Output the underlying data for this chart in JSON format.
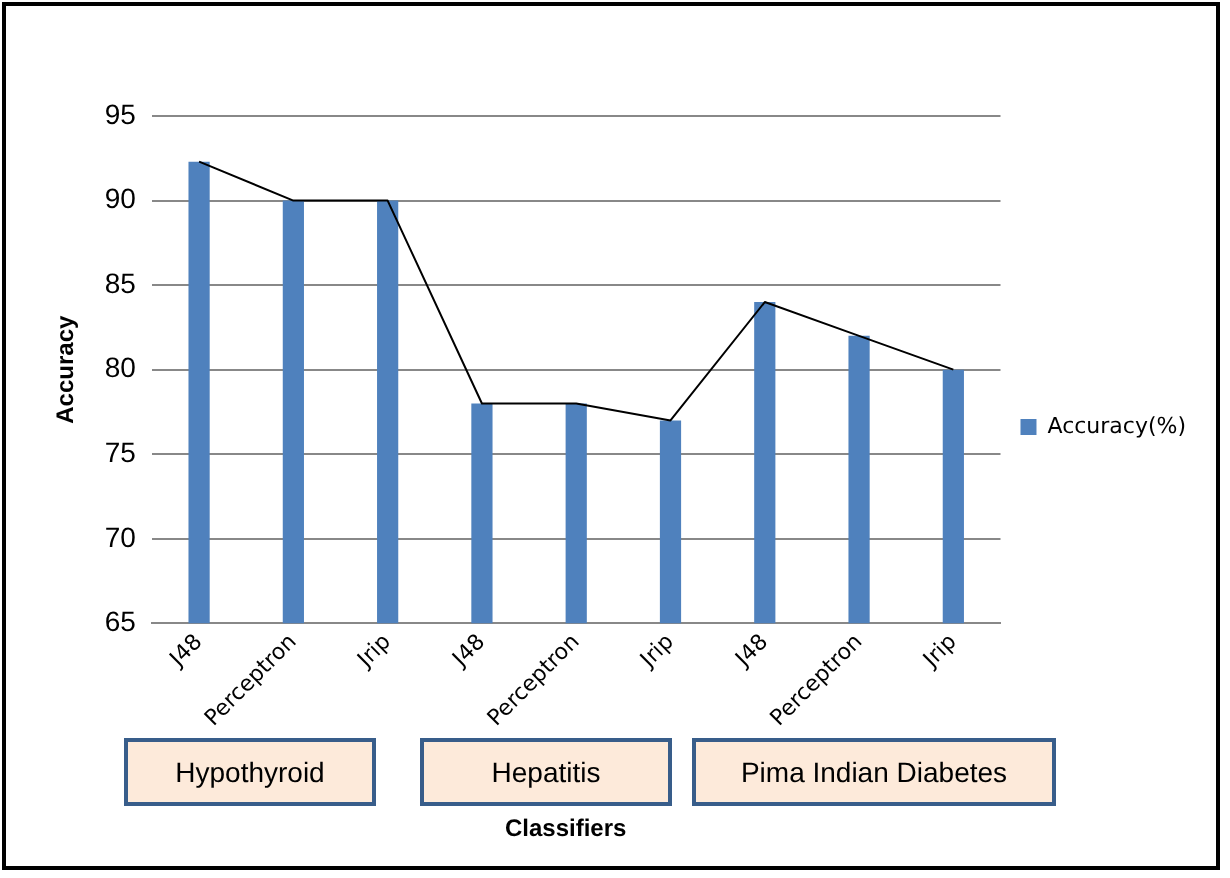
{
  "chart_data": {
    "type": "bar",
    "xlabel": "Classifiers",
    "ylabel": "Accuracy",
    "categories": [
      "J48",
      "Perceptron",
      "Jrip",
      "J48",
      "Perceptron",
      "Jrip",
      "J48",
      "Perceptron",
      "Jrip"
    ],
    "series": [
      {
        "name": "Accuracy(%)",
        "color": "#4f81bd",
        "values": [
          92.3,
          90,
          90,
          78,
          78,
          77,
          84,
          82,
          80
        ]
      },
      {
        "type": "line",
        "color": "#000000",
        "values": [
          92.3,
          90,
          90,
          78,
          78,
          77,
          84,
          82,
          80
        ]
      }
    ],
    "annotations": [
      "Hypothyroid",
      "Hepatitis",
      "Pima Indian Diabetes"
    ],
    "ylim": [
      65,
      95
    ],
    "yticks": [
      65,
      70,
      75,
      80,
      85,
      90,
      95
    ],
    "grid": "y",
    "legend": "right",
    "marker": "none"
  }
}
